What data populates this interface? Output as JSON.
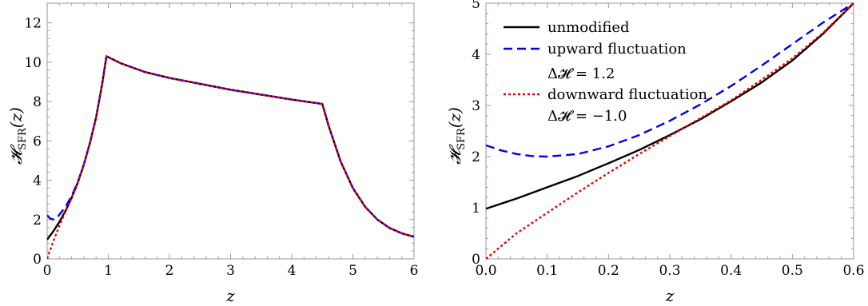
{
  "chart_data": [
    {
      "type": "line",
      "title": "",
      "xlabel": "z",
      "ylabel": "𝓗",
      "ylabel_sub": "SFR",
      "ylabel_arg": "(z)",
      "xlim": [
        0,
        6
      ],
      "ylim": [
        0,
        13
      ],
      "xticks": [
        0,
        1,
        2,
        3,
        4,
        5,
        6
      ],
      "yticks": [
        0,
        2,
        4,
        6,
        8,
        10,
        12
      ],
      "xtick_labels": [
        "0",
        "1",
        "2",
        "3",
        "4",
        "5",
        "6"
      ],
      "ytick_labels": [
        "0",
        "2",
        "4",
        "6",
        "8",
        "10",
        "12"
      ],
      "grid": false,
      "legend": "none",
      "series": [
        {
          "style": "solid",
          "color": "#000000",
          "x": [
            0,
            0.1,
            0.2,
            0.3,
            0.4,
            0.5,
            0.6,
            0.7,
            0.8,
            0.9,
            0.97,
            1.2,
            1.6,
            2.0,
            2.5,
            3.0,
            3.5,
            4.0,
            4.5,
            4.6,
            4.8,
            5.0,
            5.2,
            5.4,
            5.6,
            5.8,
            6.0
          ],
          "y": [
            0.98,
            1.4,
            1.88,
            2.44,
            3.1,
            3.87,
            4.79,
            5.9,
            7.18,
            8.9,
            10.3,
            9.95,
            9.5,
            9.2,
            8.9,
            8.6,
            8.35,
            8.1,
            7.88,
            6.8,
            4.95,
            3.6,
            2.65,
            2.0,
            1.57,
            1.3,
            1.12
          ]
        },
        {
          "style": "dashed",
          "color": "#0000ee",
          "x": [
            0,
            0.05,
            0.1,
            0.15,
            0.2,
            0.3,
            0.4,
            0.5,
            0.6,
            0.7,
            0.8,
            0.9,
            0.97,
            1.2,
            1.6,
            2.0,
            2.5,
            3.0,
            3.5,
            4.0,
            4.5,
            4.6,
            4.8,
            5.0,
            5.2,
            5.4,
            5.6,
            5.8,
            6.0
          ],
          "y": [
            2.22,
            2.05,
            2.0,
            2.04,
            2.25,
            2.65,
            3.2,
            3.9,
            4.8,
            5.9,
            7.18,
            8.9,
            10.3,
            9.95,
            9.5,
            9.2,
            8.9,
            8.6,
            8.35,
            8.1,
            7.88,
            6.8,
            4.95,
            3.6,
            2.65,
            2.0,
            1.57,
            1.3,
            1.12
          ]
        },
        {
          "style": "dotted",
          "color": "#ee0000",
          "x": [
            0,
            0.1,
            0.2,
            0.3,
            0.4,
            0.5,
            0.6,
            0.7,
            0.8,
            0.9,
            0.97,
            1.2,
            1.6,
            2.0,
            2.5,
            3.0,
            3.5,
            4.0,
            4.5,
            4.6,
            4.8,
            5.0,
            5.2,
            5.4,
            5.6,
            5.8,
            6.0
          ],
          "y": [
            0.0,
            0.9,
            1.68,
            2.4,
            3.1,
            3.87,
            4.79,
            5.9,
            7.18,
            8.9,
            10.3,
            9.95,
            9.5,
            9.2,
            8.9,
            8.6,
            8.35,
            8.1,
            7.88,
            6.8,
            4.95,
            3.6,
            2.65,
            2.0,
            1.57,
            1.3,
            1.12
          ]
        }
      ]
    },
    {
      "type": "line",
      "title": "",
      "xlabel": "z",
      "ylabel": "𝓗",
      "ylabel_sub": "SFR",
      "ylabel_arg": "(z)",
      "xlim": [
        0,
        0.6
      ],
      "ylim": [
        0,
        5
      ],
      "xticks": [
        0,
        0.1,
        0.2,
        0.3,
        0.4,
        0.5,
        0.6
      ],
      "yticks": [
        0,
        1,
        2,
        3,
        4,
        5
      ],
      "xtick_labels": [
        "0.0",
        "0.1",
        "0.2",
        "0.3",
        "0.4",
        "0.5",
        "0.6"
      ],
      "ytick_labels": [
        "0",
        "1",
        "2",
        "3",
        "4",
        "5"
      ],
      "grid": false,
      "legend": "top-left",
      "legend_entries": [
        {
          "label": "unmodified",
          "sublabel": "",
          "style": "solid",
          "color": "#000000"
        },
        {
          "label": "upward fluctuation",
          "sublabel": "Δ𝓗 = 1.2",
          "style": "dashed",
          "color": "#0000ee"
        },
        {
          "label": "downward fluctuation",
          "sublabel": "Δ𝓗 = −1.0",
          "style": "dotted",
          "color": "#ee0000"
        }
      ],
      "series": [
        {
          "style": "solid",
          "color": "#000000",
          "x": [
            0,
            0.05,
            0.1,
            0.15,
            0.2,
            0.25,
            0.3,
            0.35,
            0.4,
            0.45,
            0.5,
            0.55,
            0.6
          ],
          "y": [
            0.98,
            1.18,
            1.4,
            1.62,
            1.87,
            2.13,
            2.42,
            2.73,
            3.08,
            3.45,
            3.88,
            4.4,
            5.0
          ]
        },
        {
          "style": "dashed",
          "color": "#0000ee",
          "x": [
            0,
            0.025,
            0.05,
            0.075,
            0.1,
            0.15,
            0.2,
            0.25,
            0.3,
            0.35,
            0.4,
            0.45,
            0.5,
            0.55,
            0.6
          ],
          "y": [
            2.22,
            2.12,
            2.05,
            2.01,
            2.0,
            2.05,
            2.2,
            2.42,
            2.7,
            3.02,
            3.38,
            3.78,
            4.2,
            4.62,
            5.0
          ]
        },
        {
          "style": "dotted",
          "color": "#ee0000",
          "x": [
            0,
            0.05,
            0.1,
            0.15,
            0.2,
            0.25,
            0.3,
            0.35,
            0.4,
            0.45,
            0.5,
            0.55,
            0.6
          ],
          "y": [
            0.0,
            0.5,
            0.9,
            1.3,
            1.68,
            2.05,
            2.4,
            2.75,
            3.1,
            3.5,
            3.92,
            4.42,
            5.0
          ]
        }
      ]
    }
  ]
}
